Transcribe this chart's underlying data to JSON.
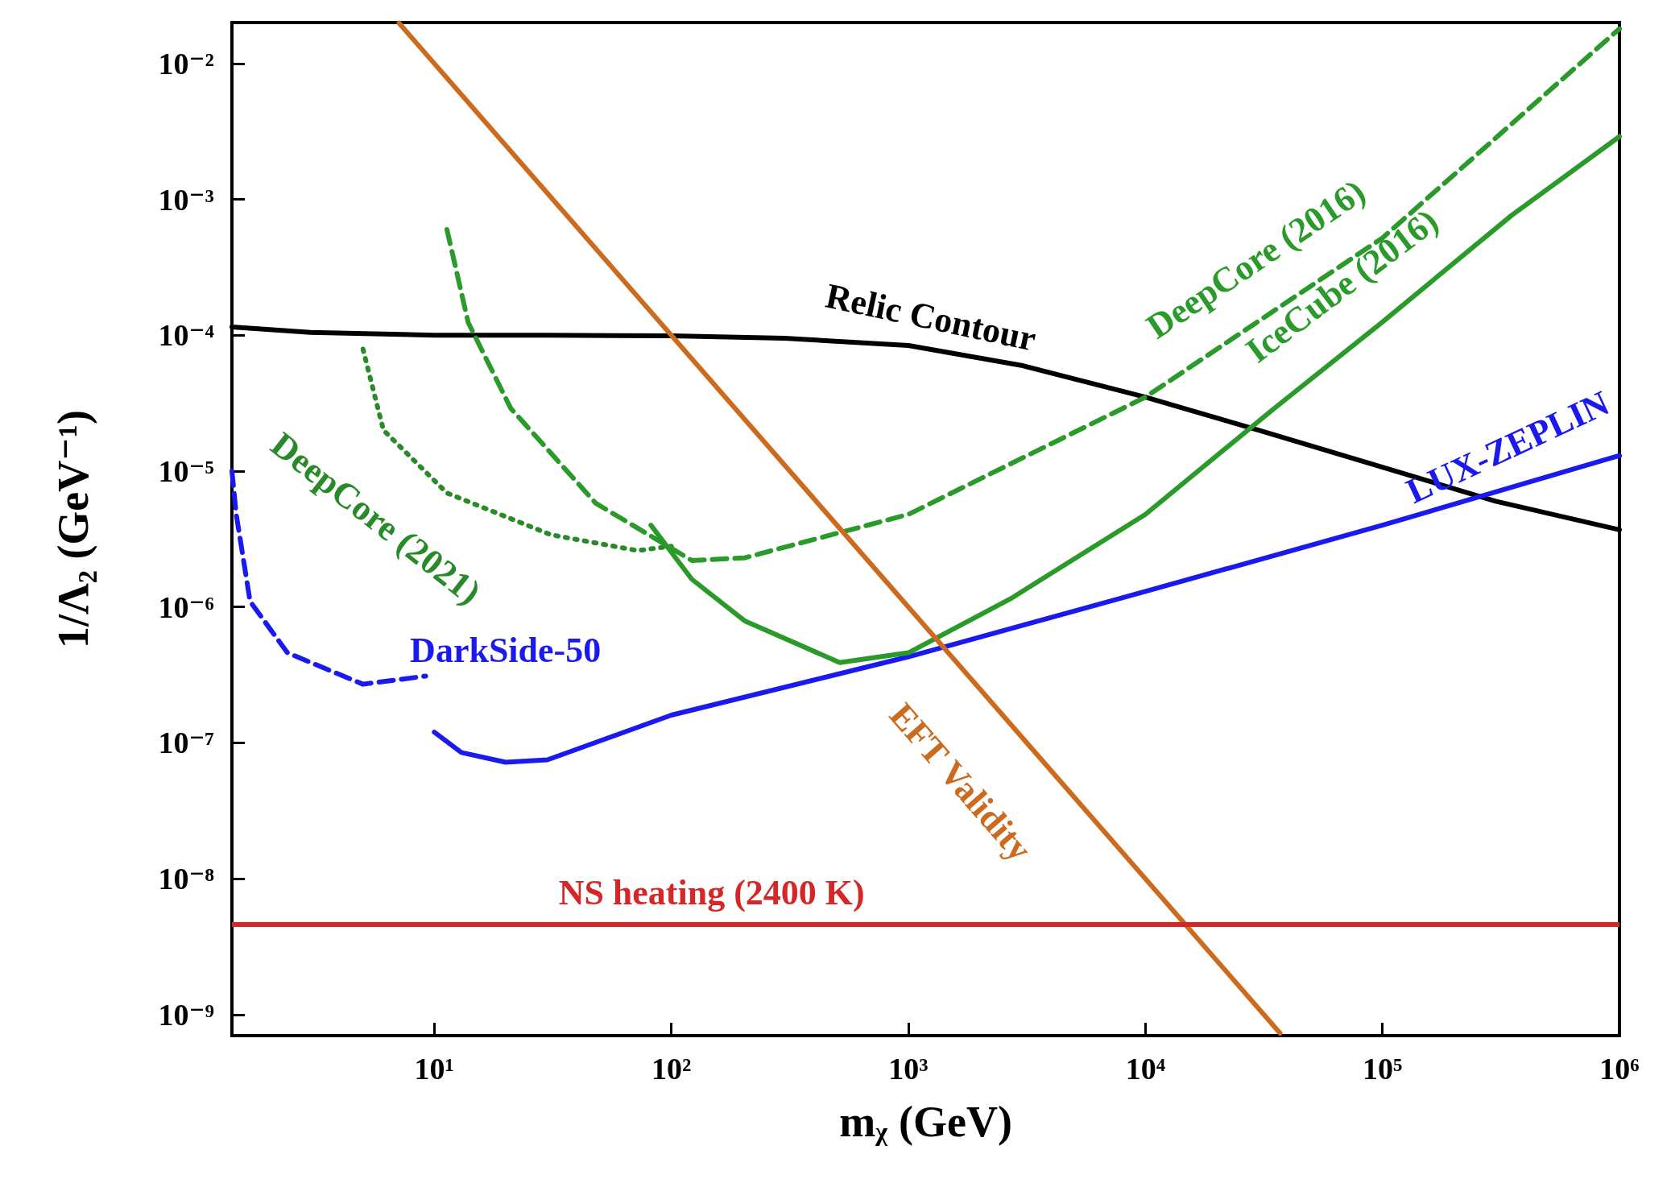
{
  "chart_data": {
    "type": "line",
    "xlabel": "mᵪ (GeV)",
    "ylabel": "1/Λ₂ (GeV⁻¹)",
    "log": "xy",
    "marker": "none",
    "xlim": [
      1.4,
      1000000
    ],
    "ylim": [
      7e-10,
      0.02
    ],
    "xticks": [
      {
        "value": 10,
        "label": "10¹"
      },
      {
        "value": 100,
        "label": "10²"
      },
      {
        "value": 1000,
        "label": "10³"
      },
      {
        "value": 10000,
        "label": "10⁴"
      },
      {
        "value": 100000,
        "label": "10⁵"
      },
      {
        "value": 1000000,
        "label": "10⁶"
      }
    ],
    "yticks": [
      {
        "value": 1e-09,
        "label": "10⁻⁹"
      },
      {
        "value": 1e-08,
        "label": "10⁻⁸"
      },
      {
        "value": 1e-07,
        "label": "10⁻⁷"
      },
      {
        "value": 1e-06,
        "label": "10⁻⁶"
      },
      {
        "value": 1e-05,
        "label": "10⁻⁵"
      },
      {
        "value": 0.0001,
        "label": "10⁻⁴"
      },
      {
        "value": 0.001,
        "label": "10⁻³"
      },
      {
        "value": 0.01,
        "label": "10⁻²"
      }
    ],
    "series": [
      {
        "name": "Relic Contour",
        "color": "#000000",
        "x": [
          1.4,
          3,
          10,
          30,
          100,
          300,
          1000,
          3000,
          10000,
          30000,
          100000,
          300000,
          1000000
        ],
        "values": [
          0.000115,
          0.000105,
          0.0001,
          0.0001,
          9.9e-05,
          9.5e-05,
          8.4e-05,
          6e-05,
          3.5e-05,
          2e-05,
          1.07e-05,
          6e-06,
          3.7e-06
        ]
      },
      {
        "name": "LUX-ZEPLIN",
        "color": "#1a1aee",
        "x": [
          10,
          13,
          20,
          30,
          100,
          1000,
          10000,
          100000,
          1000000
        ],
        "values": [
          1.2e-07,
          8.5e-08,
          7.2e-08,
          7.5e-08,
          1.6e-07,
          4.3e-07,
          1.3e-06,
          4e-06,
          1.3e-05
        ]
      },
      {
        "name": "DarkSide-50",
        "color": "#1a1aee",
        "line_style": "dashed",
        "x": [
          1.4,
          1.46,
          1.67,
          2.4,
          5,
          9.2
        ],
        "values": [
          1e-05,
          4.8e-06,
          1.1e-06,
          4.6e-07,
          2.7e-07,
          3.1e-07
        ]
      },
      {
        "name": "DeepCore (2021)",
        "color": "#2a8a2a",
        "line_style": "dotted",
        "x": [
          5,
          6.1,
          11.3,
          31,
          72,
          100
        ],
        "values": [
          7.9e-05,
          2e-05,
          6.9e-06,
          3.4e-06,
          2.6e-06,
          2.8e-06
        ]
      },
      {
        "name": "DeepCore (2016)",
        "color": "#2a9a2a",
        "line_style": "dashed",
        "x": [
          11.3,
          13.9,
          21,
          48,
          122,
          204,
          1000,
          10000,
          100000,
          1000000
        ],
        "values": [
          0.0006,
          0.000124,
          2.9e-05,
          5.8e-06,
          2.2e-06,
          2.3e-06,
          4.8e-06,
          3.5e-05,
          0.00052,
          0.018
        ]
      },
      {
        "name": "IceCube (2016)",
        "color": "#2a9a2a",
        "x": [
          82,
          122,
          204,
          513,
          1000,
          2700,
          10000,
          35000,
          100000,
          350000,
          1000000
        ],
        "values": [
          4e-06,
          1.6e-06,
          7.9e-07,
          3.9e-07,
          4.6e-07,
          1.15e-06,
          4.8e-06,
          2.9e-05,
          0.000125,
          0.00076,
          0.0029
        ]
      },
      {
        "name": "EFT Validity",
        "color": "#cc6a1e",
        "x": [
          7.1,
          3000,
          37000
        ],
        "values": [
          0.0198,
          1.11e-07,
          7.3e-10
        ]
      }
    ],
    "ref_lines": [
      {
        "axis": "y",
        "value": 4.6e-09,
        "label": "NS heating (2400 K)",
        "color": "#d62728"
      }
    ]
  }
}
